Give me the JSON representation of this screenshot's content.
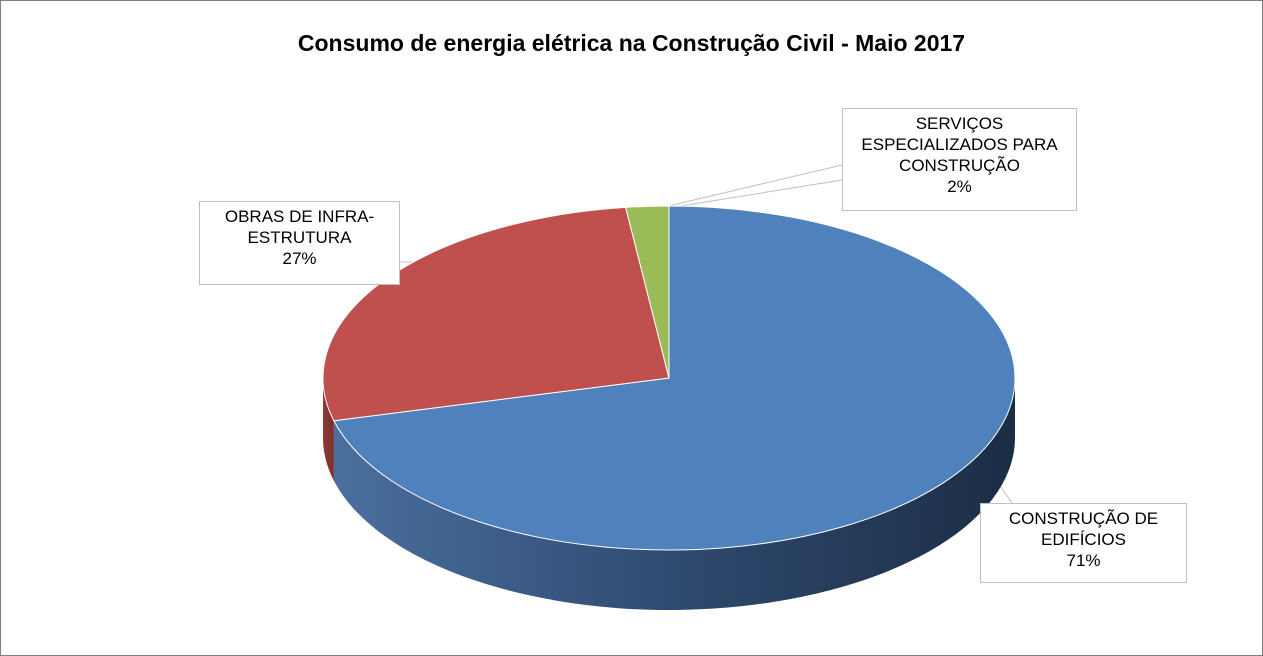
{
  "chart_data": {
    "type": "pie3d",
    "title": "Consumo de energia elétrica na Construção Civil -  Maio 2017",
    "categories": [
      "CONSTRUÇÃO DE EDIFÍCIOS",
      "OBRAS DE INFRA-ESTRUTURA",
      "SERVIÇOS ESPECIALIZADOS PARA CONSTRUÇÃO"
    ],
    "values": [
      71,
      27,
      2
    ],
    "value_labels": [
      "71%",
      "27%",
      "2%"
    ],
    "colors": [
      "#4f81bd",
      "#c0504d",
      "#9bbb59"
    ]
  }
}
